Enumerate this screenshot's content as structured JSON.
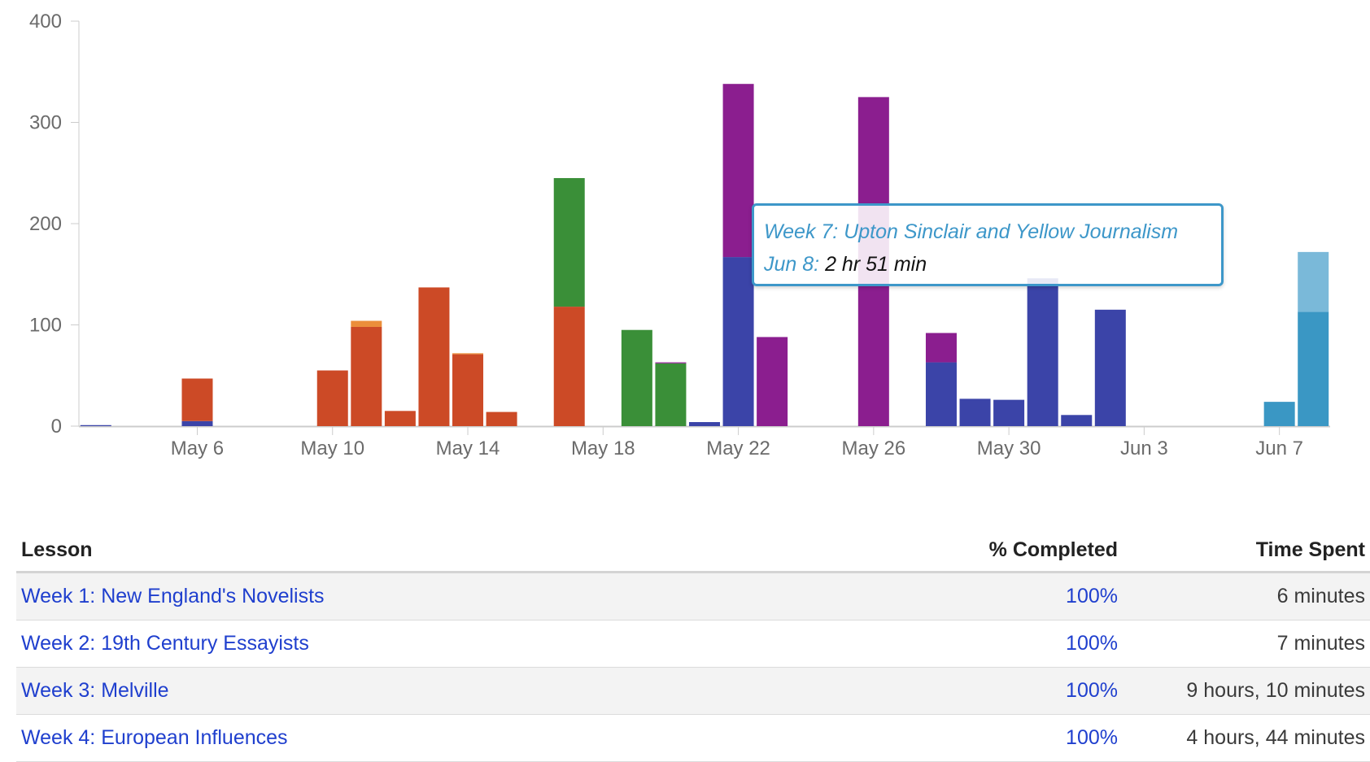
{
  "chart_data": {
    "type": "bar",
    "stacked": true,
    "title": "",
    "xlabel": "",
    "ylabel": "",
    "ylim": [
      0,
      400
    ],
    "y_ticks": [
      0,
      100,
      200,
      300,
      400
    ],
    "x_range": [
      "May 3",
      "Jun 8"
    ],
    "x_ticks": [
      {
        "date": "May 6",
        "label": "May 6"
      },
      {
        "date": "May 10",
        "label": "May 10"
      },
      {
        "date": "May 14",
        "label": "May 14"
      },
      {
        "date": "May 18",
        "label": "May 18"
      },
      {
        "date": "May 22",
        "label": "May 22"
      },
      {
        "date": "May 26",
        "label": "May 26"
      },
      {
        "date": "May 30",
        "label": "May 30"
      },
      {
        "date": "Jun 3",
        "label": "Jun 3"
      },
      {
        "date": "Jun 7",
        "label": "Jun 7"
      }
    ],
    "grid": false,
    "legend": "none",
    "series": [
      {
        "color": "#3b44a8",
        "points": [
          {
            "date": "May 3",
            "value": 1
          },
          {
            "date": "May 6",
            "value": 5
          },
          {
            "date": "May 21",
            "value": 4
          },
          {
            "date": "May 22",
            "value": 167
          },
          {
            "date": "May 28",
            "value": 63
          },
          {
            "date": "May 29",
            "value": 27
          },
          {
            "date": "May 30",
            "value": 26
          },
          {
            "date": "May 31",
            "value": 146
          },
          {
            "date": "Jun 1",
            "value": 11
          },
          {
            "date": "Jun 2",
            "value": 115
          }
        ]
      },
      {
        "color": "#cc4a26",
        "points": [
          {
            "date": "May 6",
            "value": 42
          },
          {
            "date": "May 10",
            "value": 55
          },
          {
            "date": "May 11",
            "value": 98
          },
          {
            "date": "May 12",
            "value": 15
          },
          {
            "date": "May 13",
            "value": 137
          },
          {
            "date": "May 14",
            "value": 71
          },
          {
            "date": "May 15",
            "value": 14
          },
          {
            "date": "May 17",
            "value": 118
          }
        ]
      },
      {
        "color": "#eb8e3a",
        "points": [
          {
            "date": "May 11",
            "value": 6
          },
          {
            "date": "May 14",
            "value": 1
          }
        ]
      },
      {
        "color": "#3a8f38",
        "points": [
          {
            "date": "May 17",
            "value": 127
          },
          {
            "date": "May 19",
            "value": 95
          },
          {
            "date": "May 20",
            "value": 62
          }
        ]
      },
      {
        "color": "#8b1e8f",
        "points": [
          {
            "date": "May 20",
            "value": 1
          },
          {
            "date": "May 22",
            "value": 171
          },
          {
            "date": "May 23",
            "value": 88
          },
          {
            "date": "May 26",
            "value": 325
          },
          {
            "date": "May 28",
            "value": 29
          }
        ]
      },
      {
        "color": "#3a97c4",
        "points": [
          {
            "date": "Jun 7",
            "value": 24
          },
          {
            "date": "Jun 8",
            "value": 113
          }
        ]
      },
      {
        "color": "#7ab9d9",
        "points": [
          {
            "date": "Jun 8",
            "value": 59
          }
        ]
      }
    ]
  },
  "tooltip": {
    "series_label": "Week 7: Upton Sinclair and Yellow Journalism",
    "date_label": "Jun 8:",
    "value_label": "2 hr 51 min"
  },
  "table": {
    "headers": {
      "lesson": "Lesson",
      "completed": "% Completed",
      "time": "Time Spent"
    },
    "rows": [
      {
        "lesson": "Week 1: New England's Novelists",
        "completed": "100%",
        "time": "6 minutes"
      },
      {
        "lesson": "Week 2: 19th Century Essayists",
        "completed": "100%",
        "time": "7 minutes"
      },
      {
        "lesson": "Week 3: Melville",
        "completed": "100%",
        "time": "9 hours, 10 minutes"
      },
      {
        "lesson": "Week 4: European Influences",
        "completed": "100%",
        "time": "4 hours, 44 minutes"
      }
    ]
  }
}
